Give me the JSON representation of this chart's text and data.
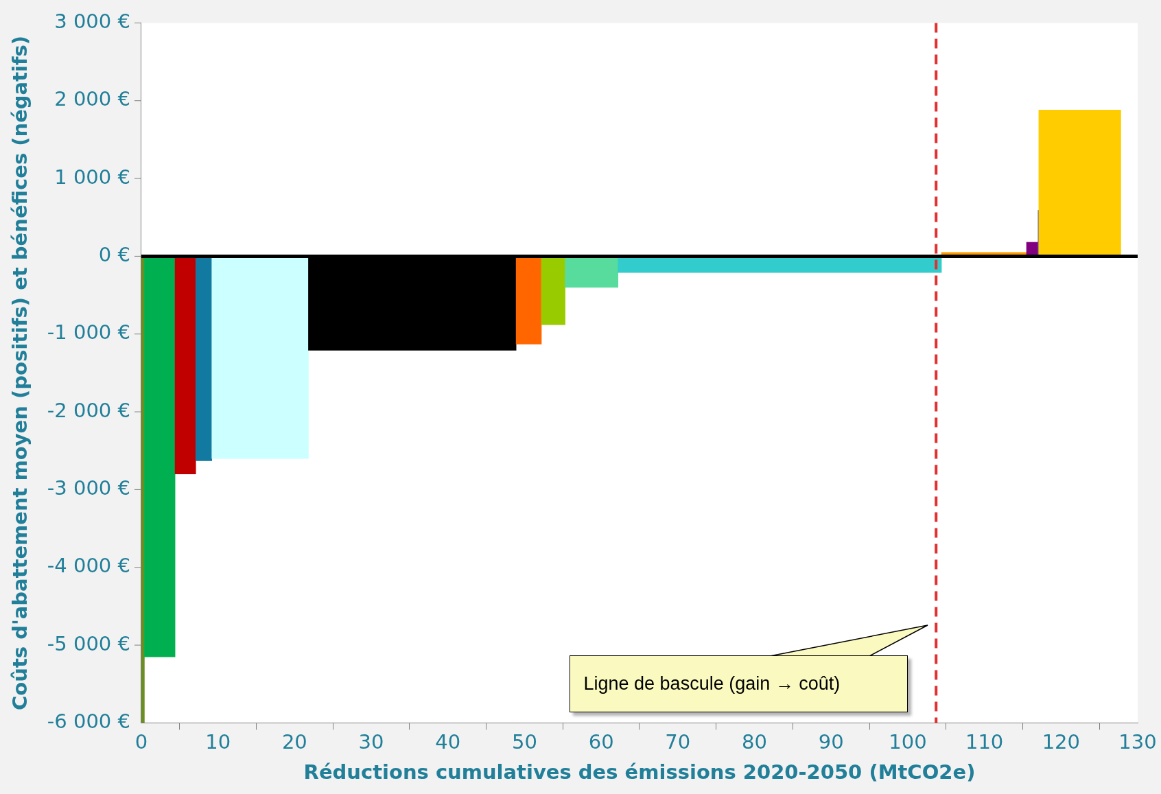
{
  "chart_data": {
    "type": "histogram",
    "xlabel": "Réductions cumulatives des émissions 2020-2050 (MtCO2e)",
    "ylabel": "Coûts d'abattement moyen (positifs) et bénéfices (négatifs)",
    "bins": [
      0,
      0.4,
      4.4,
      7.1,
      9.2,
      21.8,
      48.9,
      52.2,
      55.3,
      62.2,
      104.4,
      115.5,
      117,
      117.1,
      127.8
    ],
    "values": [
      -6000,
      -5150,
      -2800,
      -2630,
      -2600,
      -1210,
      -1130,
      -880,
      -400,
      -210,
      50,
      180,
      590,
      1880
    ],
    "colors": [
      "#6b8e23",
      "#00b050",
      "#c00000",
      "#1279a0",
      "#ccffff",
      "#000000",
      "#ff6600",
      "#99cc00",
      "#57dc9e",
      "#33cccc",
      "#ff9900",
      "#800080",
      "#6666aa",
      "#ffcc00"
    ],
    "xlim": [
      0,
      130
    ],
    "xticks": [
      0,
      10,
      20,
      30,
      40,
      50,
      60,
      70,
      80,
      90,
      100,
      110,
      120,
      130
    ],
    "ylim": [
      -6000,
      3000
    ],
    "yticks": [
      {
        "value": -6000,
        "label": "-6 000 €"
      },
      {
        "value": -5000,
        "label": "-5 000 €"
      },
      {
        "value": -4000,
        "label": "-4 000 €"
      },
      {
        "value": -3000,
        "label": "-3 000 €"
      },
      {
        "value": -2000,
        "label": "-2 000 €"
      },
      {
        "value": -1000,
        "label": "-1 000 €"
      },
      {
        "value": 0,
        "label": "0 €"
      },
      {
        "value": 1000,
        "label": "1 000 €"
      },
      {
        "value": 2000,
        "label": "2 000 €"
      },
      {
        "value": 3000,
        "label": "3 000 €"
      }
    ],
    "ref_lines": [
      {
        "axis": "y",
        "value": 0,
        "color": "#000000",
        "line_style": "solid"
      },
      {
        "axis": "x",
        "value": 103.7,
        "color": "#e03030",
        "line_style": "dashed"
      }
    ],
    "annotations": [
      "Ligne de bascule (gain → coût)"
    ],
    "grid": false,
    "legend": false
  }
}
